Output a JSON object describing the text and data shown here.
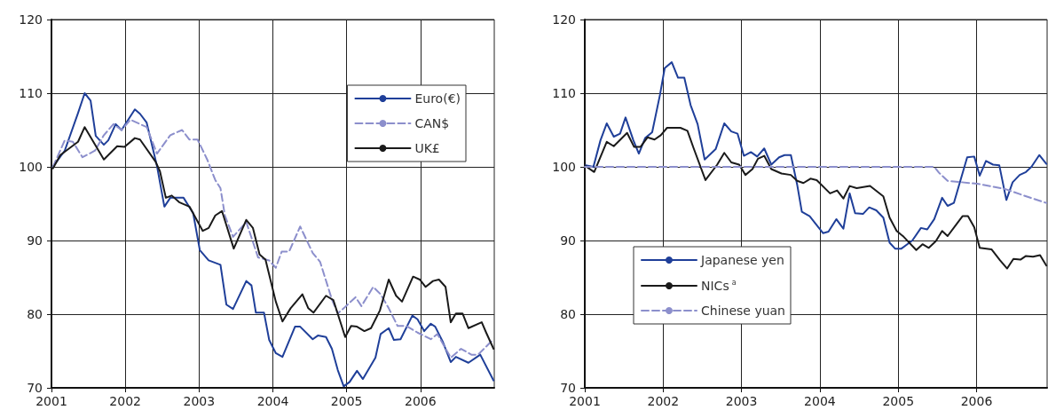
{
  "chart_data": [
    {
      "type": "line",
      "xlim": [
        2001,
        2007
      ],
      "xticks": [
        2001,
        2002,
        2003,
        2004,
        2005,
        2006
      ],
      "ylim": [
        70,
        120
      ],
      "yticks": [
        70,
        80,
        90,
        100,
        110,
        120
      ],
      "grid": true,
      "legend": "top right",
      "marker": "none",
      "series": [
        {
          "name": "Euro(€)",
          "color": "#1f3f99",
          "line_style": "solid",
          "x": [
            2001.02,
            2001.18,
            2001.36,
            2001.45,
            2001.53,
            2001.6,
            2001.71,
            2001.77,
            2001.87,
            2001.95,
            2002.13,
            2002.2,
            2002.29,
            2002.43,
            2002.53,
            2002.61,
            2002.79,
            2002.92,
            2003.01,
            2003.13,
            2003.29,
            2003.37,
            2003.46,
            2003.64,
            2003.71,
            2003.77,
            2003.88,
            2003.95,
            2004.04,
            2004.13,
            2004.3,
            2004.37,
            2004.54,
            2004.61,
            2004.72,
            2004.8,
            2004.88,
            2004.96,
            2005.04,
            2005.14,
            2005.22,
            2005.39,
            2005.46,
            2005.57,
            2005.64,
            2005.73,
            2005.89,
            2005.96,
            2006.05,
            2006.14,
            2006.2,
            2006.3,
            2006.41,
            2006.48,
            2006.65,
            2006.81,
            2006.99
          ],
          "values": [
            100,
            102.2,
            107.3,
            110,
            109,
            104.2,
            103,
            103.6,
            105.8,
            105,
            107.8,
            107.2,
            106,
            100.1,
            94.6,
            95.8,
            95.8,
            93.7,
            88.7,
            87.3,
            86.7,
            81.3,
            80.7,
            84.5,
            83.9,
            80.2,
            80.2,
            76.5,
            74.7,
            74.2,
            78.3,
            78.3,
            76.6,
            77.1,
            76.9,
            75.3,
            72.4,
            70.2,
            70.8,
            72.3,
            71.2,
            74.1,
            77.3,
            78.1,
            76.5,
            76.6,
            79.8,
            79.3,
            77.7,
            78.7,
            78.3,
            76.3,
            73.5,
            74.2,
            73.4,
            74.5,
            71
          ]
        },
        {
          "name": "CAN$",
          "color": "#8c8fcc",
          "line_style": "dashed",
          "x": [
            2001.02,
            2001.18,
            2001.29,
            2001.42,
            2001.59,
            2001.71,
            2001.84,
            2001.95,
            2002.07,
            2002.29,
            2002.43,
            2002.61,
            2002.77,
            2002.87,
            2002.98,
            2003.11,
            2003.22,
            2003.29,
            2003.35,
            2003.46,
            2003.64,
            2003.8,
            2003.95,
            2004.04,
            2004.12,
            2004.22,
            2004.37,
            2004.54,
            2004.64,
            2004.8,
            2004.88,
            2004.96,
            2005.12,
            2005.2,
            2005.36,
            2005.46,
            2005.57,
            2005.69,
            2005.81,
            2005.96,
            2006.14,
            2006.23,
            2006.41,
            2006.55,
            2006.69,
            2006.78,
            2006.96
          ],
          "values": [
            100,
            103.6,
            103.4,
            101.3,
            102.2,
            104.3,
            105.8,
            105,
            106.4,
            105.4,
            101.8,
            104.3,
            105,
            103.7,
            103.7,
            101,
            98.2,
            97.1,
            93.4,
            90.5,
            92.5,
            87.7,
            87.3,
            86.3,
            88.5,
            88.5,
            91.9,
            88.3,
            87.1,
            82,
            80.1,
            80.8,
            82.3,
            81.1,
            83.7,
            82.7,
            80.8,
            78.4,
            78.4,
            77.5,
            76.6,
            77.3,
            74.1,
            75.3,
            74.5,
            74.5,
            76.3
          ]
        },
        {
          "name": "UK£",
          "color": "#1a1a1a",
          "line_style": "solid",
          "x": [
            2001.02,
            2001.12,
            2001.36,
            2001.45,
            2001.71,
            2001.89,
            2001.99,
            2002.13,
            2002.2,
            2002.41,
            2002.47,
            2002.55,
            2002.63,
            2002.73,
            2002.87,
            2003.05,
            2003.13,
            2003.22,
            2003.31,
            2003.47,
            2003.64,
            2003.73,
            2003.82,
            2003.9,
            2004.04,
            2004.13,
            2004.24,
            2004.4,
            2004.48,
            2004.55,
            2004.72,
            2004.82,
            2004.98,
            2005.06,
            2005.14,
            2005.24,
            2005.33,
            2005.45,
            2005.57,
            2005.67,
            2005.75,
            2005.9,
            2005.99,
            2006.07,
            2006.17,
            2006.25,
            2006.34,
            2006.41,
            2006.48,
            2006.57,
            2006.65,
            2006.83,
            2006.89,
            2006.99
          ],
          "values": [
            99.8,
            101.6,
            103.4,
            105.4,
            101,
            102.8,
            102.7,
            103.9,
            103.7,
            100.7,
            99.4,
            95.8,
            96.1,
            95.2,
            94.6,
            91.3,
            91.7,
            93.4,
            94,
            88.9,
            92.8,
            91.7,
            88.1,
            87.4,
            81.7,
            79,
            80.8,
            82.7,
            80.8,
            80.2,
            82.5,
            81.9,
            76.9,
            78.4,
            78.3,
            77.7,
            78.1,
            80.5,
            84.7,
            82.5,
            81.7,
            85.1,
            84.7,
            83.7,
            84.5,
            84.7,
            83.7,
            78.9,
            80.1,
            80.1,
            78.1,
            78.9,
            77.5,
            75.3
          ]
        }
      ]
    },
    {
      "type": "line",
      "xlim": [
        2001,
        2006.9
      ],
      "xticks": [
        2001,
        2002,
        2003,
        2004,
        2005,
        2006
      ],
      "ylim": [
        70,
        120
      ],
      "yticks": [
        70,
        80,
        90,
        100,
        110,
        120
      ],
      "grid": true,
      "legend": "bottom left",
      "marker": "none",
      "series": [
        {
          "name": "Japanese yen",
          "color": "#1f3f99",
          "line_style": "solid",
          "x": [
            2001.01,
            2001.11,
            2001.2,
            2001.28,
            2001.37,
            2001.45,
            2001.52,
            2001.62,
            2001.69,
            2001.77,
            2001.86,
            2001.96,
            2002.02,
            2002.11,
            2002.19,
            2002.27,
            2002.35,
            2002.44,
            2002.53,
            2002.67,
            2002.78,
            2002.87,
            2002.95,
            2003.03,
            2003.12,
            2003.2,
            2003.29,
            2003.38,
            2003.48,
            2003.55,
            2003.63,
            2003.71,
            2003.77,
            2003.87,
            2004.04,
            2004.11,
            2004.21,
            2004.3,
            2004.38,
            2004.45,
            2004.55,
            2004.63,
            2004.72,
            2004.81,
            2004.89,
            2004.96,
            2005.04,
            2005.18,
            2005.29,
            2005.37,
            2005.46,
            2005.56,
            2005.63,
            2005.71,
            2005.88,
            2005.97,
            2006.04,
            2006.12,
            2006.21,
            2006.29,
            2006.38,
            2006.46,
            2006.55,
            2006.63,
            2006.7,
            2006.8,
            2006.89
          ],
          "values": [
            100.2,
            100,
            103.6,
            105.9,
            104.1,
            104.5,
            106.7,
            103.6,
            101.8,
            103.9,
            104.7,
            109.8,
            113.4,
            114.2,
            112.1,
            112.1,
            108.4,
            105.8,
            101,
            102.4,
            105.9,
            104.8,
            104.5,
            101.5,
            102,
            101.4,
            102.5,
            100.3,
            101.3,
            101.6,
            101.6,
            97.6,
            93.9,
            93.3,
            91,
            91.2,
            92.9,
            91.6,
            96.4,
            93.7,
            93.6,
            94.5,
            94.1,
            93.1,
            89.7,
            88.9,
            88.9,
            90,
            91.7,
            91.5,
            92.9,
            95.8,
            94.7,
            95.1,
            101.3,
            101.4,
            98.8,
            100.8,
            100.3,
            100.2,
            95.5,
            97.9,
            98.9,
            99.3,
            100,
            101.6,
            100.4
          ]
        },
        {
          "name": "NICs$^{a}$",
          "color": "#1a1a1a",
          "line_style": "solid",
          "x": [
            2001.01,
            2001.12,
            2001.28,
            2001.37,
            2001.54,
            2001.63,
            2001.71,
            2001.8,
            2001.89,
            2001.97,
            2002.05,
            2002.22,
            2002.31,
            2002.39,
            2002.54,
            2002.69,
            2002.78,
            2002.87,
            2002.97,
            2003.05,
            2003.14,
            2003.21,
            2003.29,
            2003.38,
            2003.51,
            2003.63,
            2003.71,
            2003.79,
            2003.88,
            2003.96,
            2004.13,
            2004.22,
            2004.3,
            2004.38,
            2004.47,
            2004.64,
            2004.81,
            2004.89,
            2004.98,
            2005.07,
            2005.23,
            2005.31,
            2005.39,
            2005.48,
            2005.56,
            2005.63,
            2005.82,
            2005.89,
            2005.97,
            2006.04,
            2006.19,
            2006.3,
            2006.39,
            2006.47,
            2006.56,
            2006.63,
            2006.72,
            2006.81,
            2006.89
          ],
          "values": [
            100.1,
            99.3,
            103.4,
            102.8,
            104.6,
            102.7,
            102.7,
            104,
            103.7,
            104.3,
            105.3,
            105.3,
            104.9,
            102.5,
            98.2,
            100.3,
            101.9,
            100.6,
            100.3,
            98.9,
            99.7,
            101.1,
            101.5,
            99.7,
            99.1,
            98.9,
            98.1,
            97.8,
            98.4,
            98.2,
            96.4,
            96.8,
            95.7,
            97.4,
            97.1,
            97.4,
            96,
            93.1,
            91.3,
            90.5,
            88.7,
            89.5,
            89,
            89.9,
            91.3,
            90.6,
            93.3,
            93.3,
            91.8,
            89,
            88.8,
            87.3,
            86.2,
            87.5,
            87.4,
            87.9,
            87.8,
            88,
            86.6
          ]
        },
        {
          "name": "Chinese yuan",
          "color": "#8c8fcc",
          "line_style": "dashed",
          "x": [
            2001.0,
            2005.46,
            2005.52,
            2005.63,
            2006.01,
            2006.36,
            2006.66,
            2006.89
          ],
          "values": [
            100,
            100,
            99.2,
            98.1,
            97.7,
            97,
            95.9,
            95.1
          ]
        }
      ]
    }
  ]
}
